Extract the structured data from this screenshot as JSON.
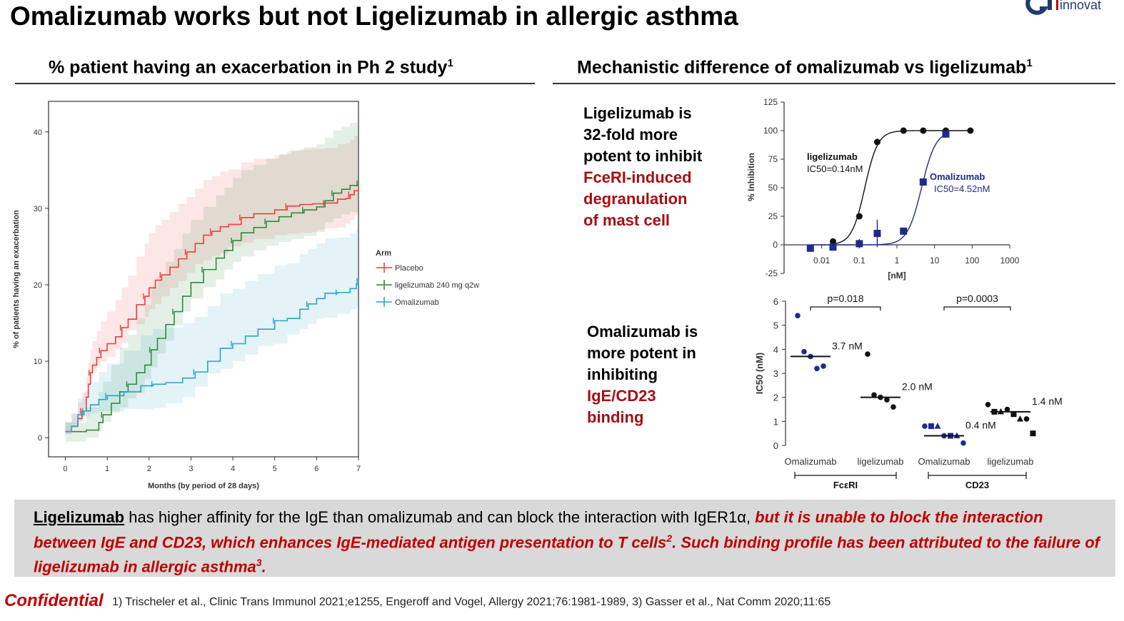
{
  "title": "Omalizumab works but not Ligelizumab in allergic asthma",
  "logo_text": "innovat",
  "colors": {
    "placebo": "#e8413a",
    "ligelizumab": "#2e8b3e",
    "omalizumab": "#2aa3c9",
    "navy": "#1f2a8a",
    "dark_red": "#a50f15",
    "bright_red": "#c00000"
  },
  "left_panel": {
    "heading": "% patient having an exacerbation in Ph 2 study",
    "heading_sup": "1"
  },
  "right_panel": {
    "heading": "Mechanistic difference of omalizumab vs ligelizumab",
    "heading_sup": "1"
  },
  "callout_top": {
    "line1": "Ligelizumab is",
    "line2": "32-fold more",
    "line3": "potent to inhibit",
    "red1": "FceRI-induced",
    "red2": "degranulation",
    "red3": "of mast cell"
  },
  "callout_bottom": {
    "line1": "Omalizumab is",
    "line2": "more potent in",
    "line3": "inhibiting",
    "red1": "IgE/CD23",
    "red2": "binding"
  },
  "summary": {
    "lead": "Ligelizumab",
    "plain": " has higher affinity for the IgE than omalizumab and can block the interaction with IgER1α, ",
    "emph1": "but it is unable to block the interaction between IgE and CD23, which enhances IgE-mediated antigen presentation to T cells",
    "sup1": "2",
    "emph2": ". Such binding profile has been attributed to the failure of ligelizumab in allergic asthma",
    "sup2": "3",
    "emph3": "."
  },
  "footer": {
    "confidential": "Confidential",
    "refs": "1) Trischeler et al., Clinic Trans Immunol 2021;e1255, Engeroff and Vogel, Allergy 2021;76:1981-1989, 3) Gasser et al., Nat Comm 2020;11:65"
  },
  "chart_data": [
    {
      "id": "km",
      "type": "line",
      "xlabel": "Months (by period of 28 days)",
      "ylabel": "% of patients having an exacerbation",
      "xlim": [
        -0.4,
        7
      ],
      "ylim": [
        -2.5,
        44
      ],
      "xticks": [
        0,
        1,
        2,
        3,
        4,
        5,
        6,
        7
      ],
      "yticks": [
        0,
        10,
        20,
        30,
        40
      ],
      "legend_title": "Arm",
      "series": [
        {
          "name": "Placebo",
          "x": [
            0,
            0.15,
            0.3,
            0.4,
            0.5,
            0.55,
            0.6,
            0.65,
            0.75,
            0.85,
            1.0,
            1.2,
            1.35,
            1.5,
            1.7,
            1.9,
            2.0,
            2.15,
            2.3,
            2.5,
            2.7,
            2.9,
            3.1,
            3.3,
            3.5,
            3.7,
            3.9,
            4.2,
            4.5,
            5.0,
            5.3,
            5.6,
            5.9,
            6.2,
            6.5,
            6.7,
            6.8,
            6.9,
            7.0
          ],
          "y": [
            0.8,
            1.5,
            2.5,
            3.5,
            5.3,
            7.0,
            8.5,
            9.5,
            10.5,
            11.4,
            12.3,
            13.2,
            14.4,
            15.5,
            17.4,
            18.5,
            19.6,
            20.6,
            21.3,
            22.3,
            23.4,
            24.3,
            25.4,
            26.5,
            27.0,
            27.6,
            27.9,
            28.8,
            29.3,
            29.8,
            30.3,
            30.5,
            30.6,
            30.7,
            31.2,
            31.3,
            31.8,
            32.3,
            32.9
          ]
        },
        {
          "name": "ligelizumab 240 mg q2w",
          "x": [
            0,
            0.5,
            0.8,
            0.9,
            1.1,
            1.3,
            1.5,
            1.7,
            1.9,
            2.05,
            2.2,
            2.4,
            2.6,
            2.8,
            3.0,
            3.3,
            3.6,
            3.8,
            4.0,
            4.2,
            4.5,
            4.8,
            5.1,
            5.4,
            5.7,
            6.0,
            6.2,
            6.4,
            6.6,
            6.8,
            7.0
          ],
          "y": [
            0.8,
            1.0,
            2.0,
            3.0,
            4.5,
            6.0,
            7.0,
            8.5,
            9.5,
            11.5,
            13.0,
            14.8,
            16.5,
            18.5,
            20.3,
            22.0,
            23.5,
            24.5,
            25.8,
            26.8,
            27.5,
            28.3,
            28.9,
            29.4,
            29.8,
            30.2,
            31.0,
            32.0,
            32.5,
            33.0,
            33.3
          ]
        },
        {
          "name": "Omalizumab",
          "x": [
            0,
            0.15,
            0.3,
            0.45,
            0.6,
            0.8,
            1.0,
            1.4,
            1.8,
            2.1,
            2.4,
            2.8,
            3.1,
            3.4,
            3.7,
            4.0,
            4.3,
            4.6,
            5.0,
            5.3,
            5.6,
            5.8,
            6.0,
            6.2,
            6.5,
            6.8,
            6.95,
            7.0
          ],
          "y": [
            0.8,
            1.5,
            3.0,
            3.5,
            4.3,
            5.0,
            5.5,
            6.0,
            6.8,
            7.0,
            7.2,
            7.8,
            8.6,
            10.0,
            11.7,
            12.3,
            13.3,
            14.2,
            15.3,
            15.6,
            16.8,
            17.5,
            18.2,
            18.9,
            19.0,
            19.5,
            20.1,
            20.5
          ]
        }
      ]
    },
    {
      "id": "dose",
      "type": "scatter",
      "xlabel": "[nM]",
      "ylabel": "% Inhibition",
      "xscale": "log",
      "xlim": [
        0.001,
        1000
      ],
      "ylim": [
        -25,
        125
      ],
      "xticks": [
        0.01,
        0.1,
        1,
        10,
        100,
        1000
      ],
      "xtick_labels": [
        "0.01",
        "0.1",
        "1",
        "10",
        "100",
        "1000"
      ],
      "yticks": [
        -25,
        0,
        25,
        50,
        75,
        100,
        125
      ],
      "series": [
        {
          "name": "ligelizumab",
          "label": "ligelizumab",
          "ic50_label": "IC50=0.14nM",
          "ic50": 0.14,
          "hill": 2.5,
          "x": [
            0.02,
            0.1,
            0.3,
            1.5,
            5,
            20,
            90
          ],
          "y": [
            3,
            25,
            90,
            100,
            100,
            100,
            100
          ],
          "err": [
            0,
            0,
            3,
            0,
            0,
            0,
            0
          ]
        },
        {
          "name": "Omalizumab",
          "label": "Omalizumab",
          "ic50_label": "IC50=4.52nM",
          "ic50": 4.52,
          "hill": 2.3,
          "x": [
            0.005,
            0.02,
            0.1,
            0.3,
            1.5,
            5,
            20
          ],
          "y": [
            -3,
            -2,
            1,
            10,
            12,
            55,
            97
          ],
          "err": [
            0,
            0,
            4,
            12,
            0,
            0,
            0
          ]
        }
      ]
    },
    {
      "id": "ic50",
      "type": "scatter",
      "ylabel": "IC50 (nM)",
      "ylim": [
        0,
        6
      ],
      "yticks": [
        0,
        1,
        2,
        3,
        4,
        5,
        6
      ],
      "categories": [
        "Omalizumab",
        "ligelizumab",
        "Omalizumab",
        "ligelizumab"
      ],
      "groups": [
        {
          "label": "FcεRI",
          "members": [
            0,
            1
          ]
        },
        {
          "label": "CD23",
          "members": [
            2,
            3
          ]
        }
      ],
      "pvalues": [
        {
          "text": "p=0.018",
          "between": [
            0,
            1
          ]
        },
        {
          "text": "p=0.0003",
          "between": [
            2,
            3
          ]
        }
      ],
      "series": [
        {
          "category": "Omalizumab",
          "group": "FcεRI",
          "median": 3.7,
          "median_label": "3.7 nM",
          "points": [
            5.4,
            3.9,
            3.7,
            3.2,
            3.3
          ]
        },
        {
          "category": "ligelizumab",
          "group": "FcεRI",
          "median": 2.0,
          "median_label": "2.0 nM",
          "points": [
            3.8,
            2.1,
            2.0,
            1.9,
            1.6
          ]
        },
        {
          "category": "Omalizumab",
          "group": "CD23",
          "median": 0.4,
          "median_label": "0.4 nM",
          "points": [
            0.8,
            0.8,
            0.8,
            0.4,
            0.4,
            0.4,
            0.1
          ]
        },
        {
          "category": "ligelizumab",
          "group": "CD23",
          "median": 1.4,
          "median_label": "1.4 nM",
          "points": [
            1.7,
            1.4,
            1.4,
            1.5,
            1.3,
            1.1,
            1.1,
            0.5
          ]
        }
      ]
    }
  ]
}
